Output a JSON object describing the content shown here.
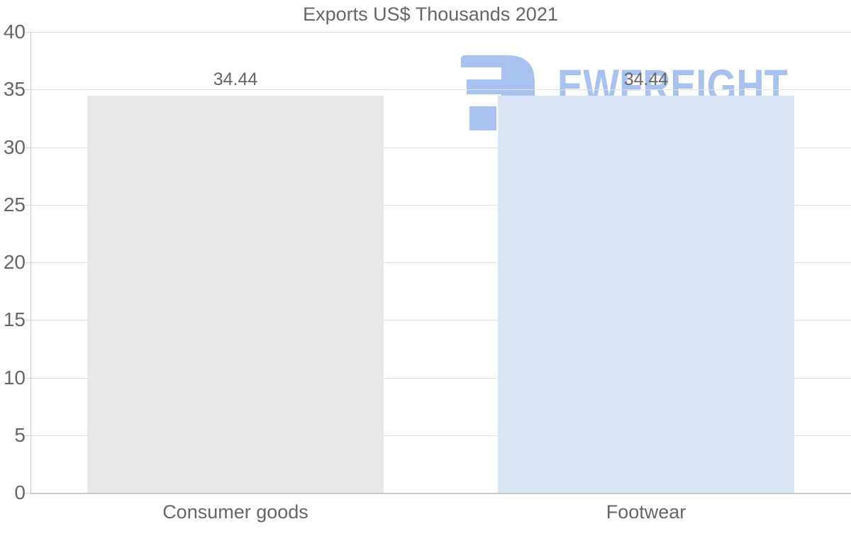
{
  "title": "Exports US$ Thousands 2021",
  "watermark": {
    "text": "EWFREIGHT",
    "icon": "ewfreight-logo-icon",
    "color": "#a7c2ee"
  },
  "chart_data": {
    "type": "bar",
    "title": "Exports US$ Thousands 2021",
    "categories": [
      "Consumer goods",
      "Footwear"
    ],
    "values": [
      34.44,
      34.44
    ],
    "value_labels": [
      "34.44",
      "34.44"
    ],
    "bar_colors": [
      "#e8e8e8",
      "#d9e6f8"
    ],
    "xlabel": "",
    "ylabel": "",
    "ylim": [
      0,
      40
    ],
    "yticks": [
      0,
      5,
      10,
      15,
      20,
      25,
      30,
      35,
      40
    ],
    "grid": "horizontal",
    "legend": "none",
    "data_labels_shown": true,
    "label_color": "#666666",
    "gridline_color": "#e2e2e2",
    "axis_line_color": "#c9c9c9",
    "background_color": "#ffffff"
  }
}
